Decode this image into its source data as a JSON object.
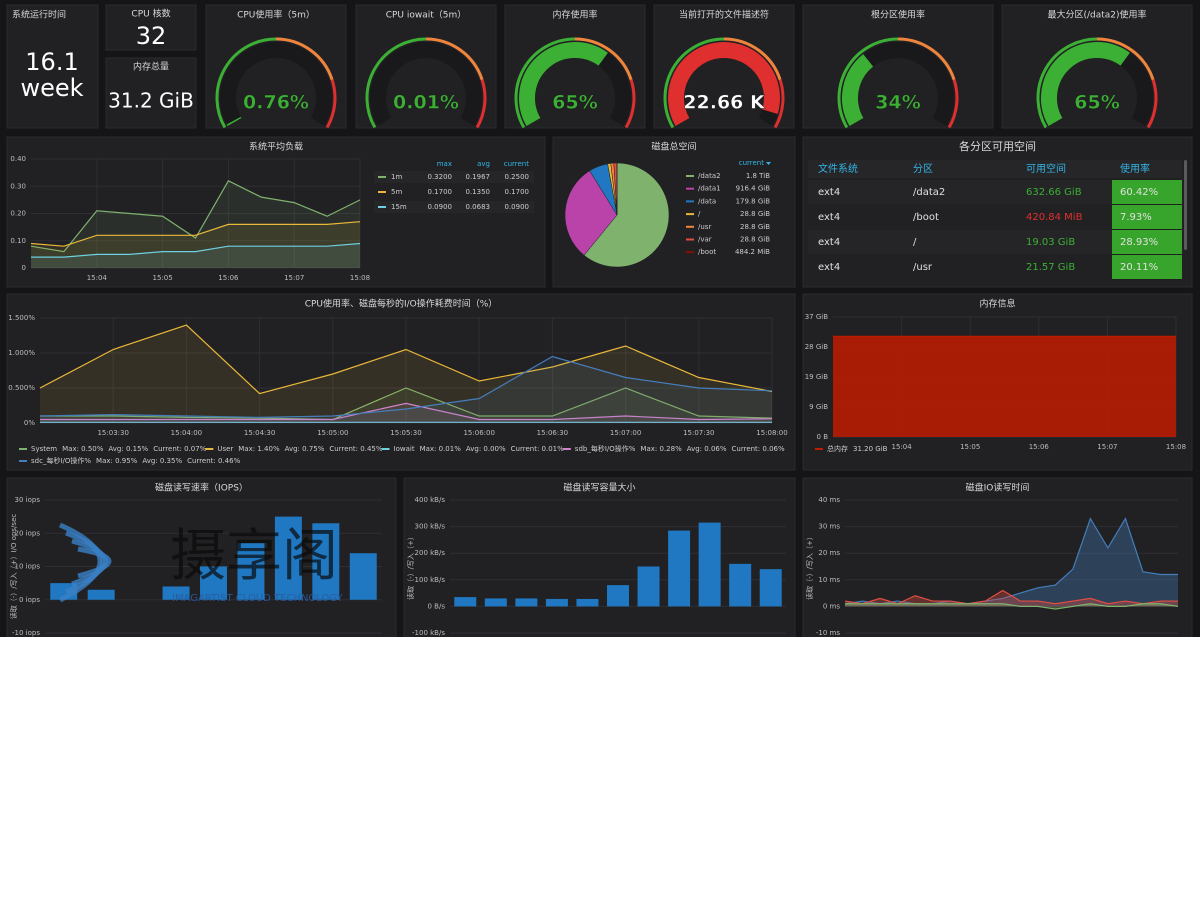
{
  "stats": [
    {
      "title": "系统运行时间",
      "value": "16.1",
      "unit": "week"
    },
    {
      "title": "CPU 核数",
      "value": 32
    },
    {
      "title": "内存总量",
      "value": "31.2 GiB"
    }
  ],
  "table": {
    "title": "各分区可用空间",
    "columns": [
      "文件系统",
      "分区",
      "可用空间",
      "使用率"
    ],
    "rows": [
      [
        "ext4",
        "/data2",
        "632.66 GiB",
        "60.42%"
      ],
      [
        "ext4",
        "/boot",
        "420.84 MiB",
        "7.93%"
      ],
      [
        "ext4",
        "/",
        "19.03 GiB",
        "28.93%"
      ],
      [
        "ext4",
        "/usr",
        "21.57 GiB",
        "20.11%"
      ]
    ],
    "available_colors": [
      "#3cb034",
      "#e02f2f",
      "#3cb034",
      "#3cb034"
    ],
    "usage_color": "#37a52b"
  },
  "watermark": {
    "text": "摄享阁",
    "subtitle": "IMAGARTIST CLOUD TECHNOLOGY"
  },
  "chart_data": [
    {
      "type": "gauge",
      "title": "CPU使用率（5m）",
      "value": 0.76,
      "value_label": "0.76%",
      "lim": [
        0,
        100
      ],
      "color": "#3cb034"
    },
    {
      "type": "gauge",
      "title": "CPU iowait（5m）",
      "value": 0.01,
      "value_label": "0.01%",
      "lim": [
        0,
        100
      ],
      "color": "#3cb034"
    },
    {
      "type": "gauge",
      "title": "内存使用率",
      "value": 65,
      "value_label": "65%",
      "lim": [
        0,
        100
      ],
      "color": "#3cb034"
    },
    {
      "type": "gauge",
      "title": "当前打开的文件描述符",
      "value": 22.66,
      "value_label": "22.66 K",
      "lim": [
        0,
        24
      ],
      "color": "#e02f2f"
    },
    {
      "type": "gauge",
      "title": "根分区使用率",
      "value": 34,
      "value_label": "34%",
      "lim": [
        0,
        100
      ],
      "color": "#3cb034"
    },
    {
      "type": "gauge",
      "title": "最大分区(/data2)使用率",
      "value": 65,
      "value_label": "65%",
      "lim": [
        0,
        100
      ],
      "color": "#3cb034"
    },
    {
      "type": "line",
      "title": "系统平均负载",
      "categories": [
        null,
        null,
        "15:04",
        null,
        "15:05",
        null,
        "15:06",
        null,
        "15:07",
        null,
        "15:08"
      ],
      "ylim": [
        0,
        0.4
      ],
      "yticks": [
        0,
        {
          "value": 0.1,
          "label": "0.10"
        },
        {
          "value": 0.2,
          "label": "0.20"
        },
        {
          "value": 0.3,
          "label": "0.30"
        },
        {
          "value": 0.4,
          "label": "0.40"
        }
      ],
      "fill": 0.1,
      "legend_headers": [
        "max",
        "avg",
        "current"
      ],
      "series": [
        {
          "name": "1m",
          "color": "#7eb26d",
          "values": [
            0.08,
            0.06,
            0.21,
            0.2,
            0.19,
            0.11,
            0.32,
            0.26,
            0.24,
            0.19,
            0.25
          ],
          "stats": [
            "0.3200",
            "0.1967",
            "0.2500"
          ]
        },
        {
          "name": "5m",
          "color": "#eab839",
          "values": [
            0.09,
            0.08,
            0.12,
            0.12,
            0.12,
            0.12,
            0.16,
            0.16,
            0.16,
            0.16,
            0.17
          ],
          "stats": [
            "0.1700",
            "0.1350",
            "0.1700"
          ]
        },
        {
          "name": "15m",
          "color": "#6ed0e0",
          "values": [
            0.04,
            0.04,
            0.05,
            0.05,
            0.06,
            0.06,
            0.08,
            0.08,
            0.08,
            0.08,
            0.09
          ],
          "stats": [
            "0.0900",
            "0.0683",
            "0.0900"
          ]
        }
      ]
    },
    {
      "type": "pie",
      "title": "磁盘总空间",
      "legend_header": "current",
      "categories": [
        "/data2",
        "/data1",
        "/data",
        "/",
        "/usr",
        "/var",
        "/boot"
      ],
      "values": [
        1843.2,
        916.4,
        179.8,
        28.8,
        28.8,
        28.8,
        0.4729
      ],
      "value_labels": [
        "1.8 TiB",
        "916.4 GiB",
        "179.8 GiB",
        "28.8 GiB",
        "28.8 GiB",
        "28.8 GiB",
        "484.2 MiB"
      ],
      "colors": [
        "#7eb26d",
        "#ba43a9",
        "#1f78c1",
        "#eab839",
        "#ef843c",
        "#e24d42",
        "#890f02"
      ]
    },
    {
      "type": "line",
      "title": "CPU使用率、磁盘每秒的I/O操作耗费时间（%）",
      "categories": [
        null,
        "15:03:30",
        "15:04:00",
        "15:04:30",
        "15:05:00",
        "15:05:30",
        "15:06:00",
        "15:06:30",
        "15:07:00",
        "15:07:30",
        "15:08:00"
      ],
      "ylim": [
        0,
        1.5
      ],
      "yticks": [
        {
          "value": 0,
          "label": "0%"
        },
        {
          "value": 0.5,
          "label": "0.500%"
        },
        {
          "value": 1,
          "label": "1.000%"
        },
        {
          "value": 1.5,
          "label": "1.500%"
        }
      ],
      "fill": 0.1,
      "series": [
        {
          "name": "System",
          "color": "#7eb26d",
          "values": [
            0.1,
            0.1,
            0.08,
            0.07,
            0.05,
            0.5,
            0.1,
            0.1,
            0.5,
            0.1,
            0.07
          ],
          "stats": [
            "Max: 0.50%",
            "Avg: 0.15%",
            "Current: 0.07%"
          ]
        },
        {
          "name": "User",
          "color": "#eab839",
          "values": [
            0.5,
            1.05,
            1.4,
            0.42,
            0.7,
            1.05,
            0.6,
            0.8,
            1.1,
            0.65,
            0.45
          ],
          "stats": [
            "Max: 1.40%",
            "Avg: 0.75%",
            "Current: 0.45%"
          ]
        },
        {
          "name": "Iowait",
          "color": "#6ed0e0",
          "values": [
            0.01,
            0.01,
            0.01,
            0.01,
            0.01,
            0.01,
            0.01,
            0.01,
            0.01,
            0.01,
            0.01
          ],
          "stats": [
            "Max: 0.01%",
            "Avg: 0.00%",
            "Current: 0.01%"
          ]
        },
        {
          "name": "sdb_每秒I/O操作%",
          "color": "#d683ce",
          "values": [
            0.05,
            0.05,
            0.05,
            0.05,
            0.05,
            0.28,
            0.05,
            0.05,
            0.1,
            0.05,
            0.06
          ],
          "stats": [
            "Max: 0.28%",
            "Avg: 0.06%",
            "Current: 0.06%"
          ]
        },
        {
          "name": "sdc_每秒I/O操作%",
          "color": "#447ebc",
          "values": [
            0.1,
            0.12,
            0.1,
            0.08,
            0.1,
            0.2,
            0.35,
            0.95,
            0.65,
            0.5,
            0.46
          ],
          "stats": [
            "Max: 0.95%",
            "Avg: 0.35%",
            "Current: 0.46%"
          ]
        }
      ]
    },
    {
      "type": "line",
      "title": "内存信息",
      "categories": [
        null,
        "15:04",
        "15:05",
        "15:06",
        "15:07",
        "15:08"
      ],
      "ylim": [
        0,
        37.2
      ],
      "yticks": [
        {
          "value": 0,
          "label": "0 B"
        },
        {
          "value": 9.3,
          "label": "9 GiB"
        },
        {
          "value": 18.6,
          "label": "19 GiB"
        },
        {
          "value": 27.9,
          "label": "28 GiB"
        },
        {
          "value": 37.2,
          "label": "37 GiB"
        }
      ],
      "fill": 0.85,
      "series": [
        {
          "name": "总内存",
          "color": "#bf1b00",
          "values": [
            31.2,
            31.2,
            31.2,
            31.2,
            31.2,
            31.2
          ],
          "stats": [
            "31.20 GiB"
          ]
        }
      ]
    },
    {
      "type": "bar",
      "title": "磁盘读写速率（IOPS）",
      "ylabel": "读取（-）/写入（+）I/O ops/sec",
      "ylim": [
        -10,
        30
      ],
      "yticks": [
        {
          "value": -10,
          "label": "-10 iops"
        },
        {
          "value": 0,
          "label": "0 iops"
        },
        {
          "value": 10,
          "label": "10 iops"
        },
        {
          "value": 20,
          "label": "20 iops"
        },
        {
          "value": 30,
          "label": "30 iops"
        }
      ],
      "color": "#1f78c1",
      "values": [
        5,
        3,
        null,
        4,
        10,
        17,
        25,
        23,
        14
      ]
    },
    {
      "type": "bar",
      "title": "磁盘读写容量大小",
      "ylabel": "读取（-）/写入（+）",
      "ylim": [
        -100,
        400
      ],
      "yticks": [
        {
          "value": -100,
          "label": "-100 kB/s"
        },
        {
          "value": 0,
          "label": "0 B/s"
        },
        {
          "value": 100,
          "label": "100 kB/s"
        },
        {
          "value": 200,
          "label": "200 kB/s"
        },
        {
          "value": 300,
          "label": "300 kB/s"
        },
        {
          "value": 400,
          "label": "400 kB/s"
        }
      ],
      "color": "#1f78c1",
      "values": [
        35,
        30,
        30,
        28,
        28,
        80,
        150,
        285,
        315,
        160,
        140
      ]
    },
    {
      "type": "line",
      "title": "磁盘IO读写时间",
      "ylabel": "读取（-）/写入（+）",
      "ylim": [
        -10,
        40
      ],
      "yticks": [
        {
          "value": -10,
          "label": "-10 ms"
        },
        {
          "value": 0,
          "label": "0 ms"
        },
        {
          "value": 10,
          "label": "10 ms"
        },
        {
          "value": 20,
          "label": "20 ms"
        },
        {
          "value": 30,
          "label": "30 ms"
        },
        {
          "value": 40,
          "label": "40 ms"
        }
      ],
      "fill": 0.35,
      "series": [
        {
          "color": "#447ebc",
          "values": [
            1,
            2,
            1,
            2,
            1,
            1,
            2,
            1,
            2,
            3,
            5,
            7,
            8,
            14,
            33,
            22,
            33,
            13,
            12,
            12
          ]
        },
        {
          "color": "#e24d42",
          "values": [
            2,
            1,
            3,
            1,
            4,
            2,
            2,
            1,
            2,
            6,
            2,
            2,
            1,
            2,
            3,
            1,
            2,
            1,
            2,
            2
          ]
        },
        {
          "color": "#7eb26d",
          "values": [
            1,
            1,
            1,
            1,
            1,
            1,
            1,
            1,
            1,
            1,
            0,
            0,
            -1,
            0,
            1,
            0,
            0,
            1,
            1,
            0
          ]
        }
      ]
    }
  ]
}
